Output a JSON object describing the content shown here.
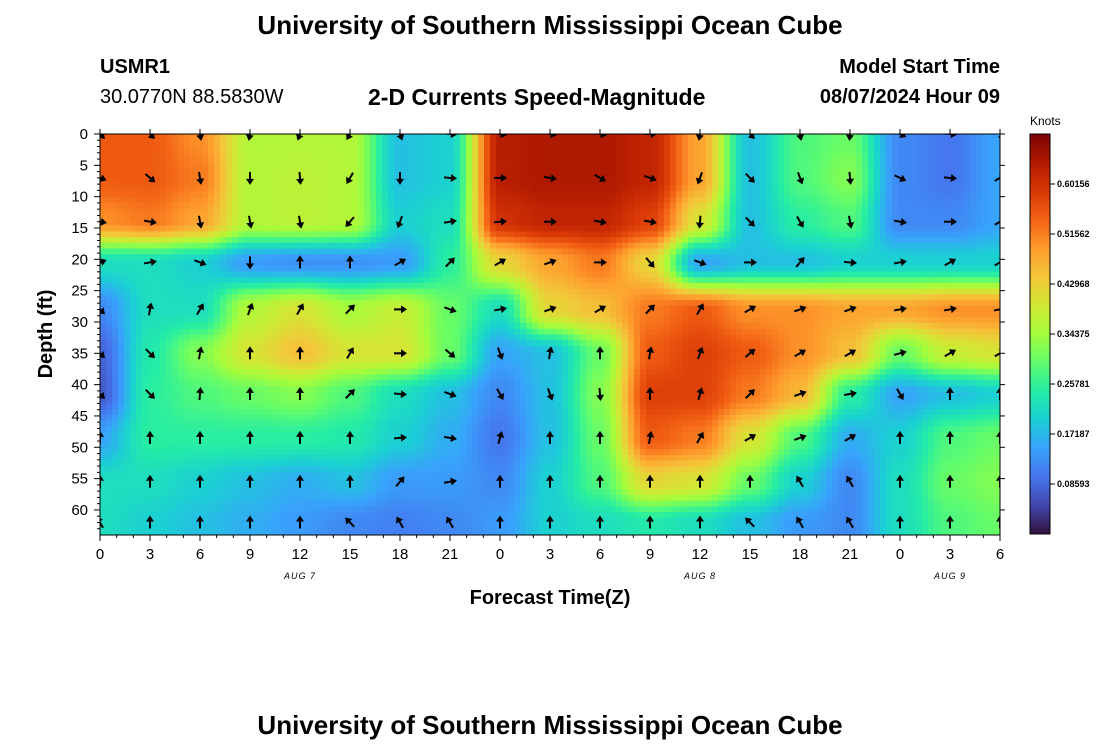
{
  "header": {
    "title": "University of Southern Mississippi Ocean Cube",
    "station_id": "USMR1",
    "coords": "30.0770N  88.5830W",
    "product": "2-D Currents Speed-Magnitude",
    "model_start_label": "Model Start Time",
    "model_start_value": "08/07/2024 Hour 09"
  },
  "footer": {
    "title": "University of Southern Mississippi Ocean Cube"
  },
  "chart_data": {
    "type": "heatmap",
    "title": "2-D Currents Speed-Magnitude",
    "xlabel": "Forecast Time(Z)",
    "ylabel": "Depth (ft)",
    "x_hours_since_aug7_00z": [
      0,
      3,
      6,
      9,
      12,
      15,
      18,
      21,
      24,
      27,
      30,
      33,
      36,
      39,
      42,
      45,
      48,
      51,
      54
    ],
    "x_tick_labels": [
      "0",
      "3",
      "6",
      "9",
      "12",
      "15",
      "18",
      "21",
      "0",
      "3",
      "6",
      "9",
      "12",
      "15",
      "18",
      "21",
      "0",
      "3",
      "6"
    ],
    "date_labels": [
      {
        "label": "AUG 7",
        "hour": 12
      },
      {
        "label": "AUG 8",
        "hour": 36
      },
      {
        "label": "AUG 9",
        "hour": 51
      }
    ],
    "y_depths_ft": [
      0,
      7,
      14,
      20.5,
      28,
      35,
      41.5,
      48.5,
      55.5,
      62
    ],
    "y_tick_labels": [
      "0",
      "5",
      "10",
      "15",
      "20",
      "25",
      "30",
      "35",
      "40",
      "45",
      "50",
      "55",
      "60"
    ],
    "xlim": [
      0,
      54
    ],
    "ylim": [
      0,
      64
    ],
    "speed_knots": [
      [
        0.55,
        0.55,
        0.5,
        0.36,
        0.36,
        0.36,
        0.18,
        0.2,
        0.63,
        0.64,
        0.64,
        0.62,
        0.48,
        0.18,
        0.28,
        0.3,
        0.12,
        0.1,
        0.15
      ],
      [
        0.55,
        0.55,
        0.52,
        0.36,
        0.37,
        0.36,
        0.18,
        0.2,
        0.63,
        0.64,
        0.64,
        0.62,
        0.48,
        0.18,
        0.28,
        0.32,
        0.12,
        0.1,
        0.15
      ],
      [
        0.5,
        0.52,
        0.48,
        0.36,
        0.37,
        0.36,
        0.2,
        0.22,
        0.6,
        0.62,
        0.62,
        0.58,
        0.4,
        0.18,
        0.25,
        0.28,
        0.12,
        0.12,
        0.15
      ],
      [
        0.22,
        0.22,
        0.2,
        0.14,
        0.13,
        0.13,
        0.14,
        0.25,
        0.42,
        0.48,
        0.52,
        0.42,
        0.15,
        0.18,
        0.18,
        0.2,
        0.2,
        0.2,
        0.2
      ],
      [
        0.12,
        0.22,
        0.22,
        0.36,
        0.4,
        0.35,
        0.38,
        0.3,
        0.22,
        0.42,
        0.45,
        0.52,
        0.55,
        0.5,
        0.5,
        0.48,
        0.48,
        0.5,
        0.5
      ],
      [
        0.08,
        0.24,
        0.32,
        0.4,
        0.45,
        0.4,
        0.4,
        0.3,
        0.15,
        0.18,
        0.3,
        0.55,
        0.58,
        0.55,
        0.5,
        0.45,
        0.3,
        0.38,
        0.4
      ],
      [
        0.07,
        0.25,
        0.28,
        0.3,
        0.32,
        0.28,
        0.22,
        0.18,
        0.12,
        0.18,
        0.32,
        0.58,
        0.58,
        0.52,
        0.46,
        0.25,
        0.15,
        0.18,
        0.2
      ],
      [
        0.15,
        0.25,
        0.25,
        0.25,
        0.25,
        0.24,
        0.2,
        0.16,
        0.1,
        0.18,
        0.3,
        0.55,
        0.52,
        0.4,
        0.28,
        0.16,
        0.2,
        0.28,
        0.3
      ],
      [
        0.22,
        0.22,
        0.2,
        0.18,
        0.16,
        0.18,
        0.14,
        0.14,
        0.12,
        0.2,
        0.28,
        0.42,
        0.4,
        0.3,
        0.2,
        0.12,
        0.22,
        0.3,
        0.32
      ],
      [
        0.22,
        0.2,
        0.18,
        0.16,
        0.14,
        0.12,
        0.11,
        0.12,
        0.14,
        0.2,
        0.22,
        0.24,
        0.22,
        0.18,
        0.14,
        0.12,
        0.22,
        0.28,
        0.3
      ]
    ],
    "arrow_dirs_deg": [
      [
        135,
        135,
        170,
        190,
        200,
        210,
        160,
        95,
        100,
        100,
        100,
        90,
        190,
        135,
        170,
        185,
        115,
        95,
        135
      ],
      [
        110,
        130,
        170,
        180,
        175,
        210,
        180,
        95,
        90,
        100,
        120,
        110,
        200,
        135,
        160,
        175,
        115,
        95,
        60
      ],
      [
        100,
        100,
        170,
        170,
        170,
        220,
        200,
        80,
        85,
        90,
        100,
        100,
        185,
        135,
        150,
        170,
        100,
        90,
        60
      ],
      [
        70,
        80,
        110,
        180,
        0,
        0,
        60,
        45,
        60,
        70,
        90,
        140,
        110,
        90,
        40,
        95,
        80,
        60,
        60
      ],
      [
        135,
        10,
        30,
        20,
        30,
        45,
        90,
        110,
        80,
        70,
        60,
        45,
        30,
        60,
        70,
        70,
        80,
        80,
        80
      ],
      [
        135,
        135,
        10,
        0,
        0,
        30,
        90,
        130,
        160,
        10,
        0,
        10,
        20,
        50,
        60,
        60,
        75,
        60,
        60
      ],
      [
        135,
        135,
        5,
        0,
        0,
        45,
        95,
        110,
        150,
        160,
        175,
        0,
        15,
        45,
        70,
        80,
        150,
        0,
        0
      ],
      [
        0,
        0,
        0,
        0,
        0,
        0,
        85,
        100,
        15,
        0,
        0,
        10,
        30,
        60,
        70,
        60,
        0,
        0,
        0
      ],
      [
        0,
        0,
        0,
        0,
        0,
        0,
        40,
        80,
        0,
        0,
        0,
        0,
        0,
        0,
        330,
        330,
        0,
        0,
        0
      ],
      [
        330,
        0,
        0,
        0,
        0,
        315,
        330,
        330,
        0,
        0,
        0,
        0,
        0,
        315,
        330,
        330,
        0,
        0,
        0
      ]
    ],
    "colorbar": {
      "unit": "Knots",
      "range": [
        0,
        0.6875
      ],
      "ticks": [
        0.08593,
        0.17187,
        0.25781,
        0.34375,
        0.42968,
        0.51562,
        0.60156
      ],
      "tick_labels": [
        "0.08593",
        "0.17187",
        "0.25781",
        "0.34375",
        "0.42968",
        "0.51562",
        "0.60156"
      ],
      "colormap": [
        "#30123b",
        "#4145ab",
        "#4675ed",
        "#39a2fc",
        "#1bcfd4",
        "#24eca6",
        "#61fc6c",
        "#a4fc3b",
        "#d1e834",
        "#f3c63a",
        "#fe9b2d",
        "#f36315",
        "#d93806",
        "#b11901",
        "#7a0402"
      ]
    }
  }
}
